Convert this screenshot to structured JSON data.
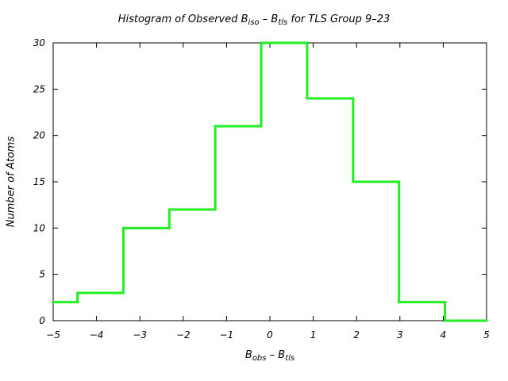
{
  "chart_data": {
    "type": "bar",
    "title": {
      "prefix": "Histogram of Observed B",
      "sub1": "iso",
      "mid": " – B",
      "sub2": "tls",
      "suffix": " for TLS Group 9–23"
    },
    "xlabel": {
      "main1": "B",
      "sub1": "obs",
      "mid": " – B",
      "sub2": "tls"
    },
    "ylabel": "Number of Atoms",
    "xlim": [
      -5,
      5
    ],
    "ylim": [
      0,
      30
    ],
    "xticks": [
      {
        "value": -5,
        "label": "−5"
      },
      {
        "value": -4,
        "label": "−4"
      },
      {
        "value": -3,
        "label": "−3"
      },
      {
        "value": -2,
        "label": "−2"
      },
      {
        "value": -1,
        "label": "−1"
      },
      {
        "value": 0,
        "label": "0"
      },
      {
        "value": 1,
        "label": "1"
      },
      {
        "value": 2,
        "label": "2"
      },
      {
        "value": 3,
        "label": "3"
      },
      {
        "value": 4,
        "label": "4"
      },
      {
        "value": 5,
        "label": "5"
      }
    ],
    "yticks": [
      {
        "value": 0,
        "label": "0"
      },
      {
        "value": 5,
        "label": "5"
      },
      {
        "value": 10,
        "label": "10"
      },
      {
        "value": 15,
        "label": "15"
      },
      {
        "value": 20,
        "label": "20"
      },
      {
        "value": 25,
        "label": "25"
      },
      {
        "value": 30,
        "label": "30"
      }
    ],
    "bin_edges": [
      -5.0,
      -4.44,
      -3.38,
      -2.32,
      -1.26,
      -0.2,
      0.86,
      1.92,
      2.98,
      4.04,
      5.0
    ],
    "counts": [
      2,
      3,
      10,
      12,
      21,
      30,
      24,
      15,
      2,
      0
    ],
    "line_color": "#22ee22",
    "grid": false
  }
}
